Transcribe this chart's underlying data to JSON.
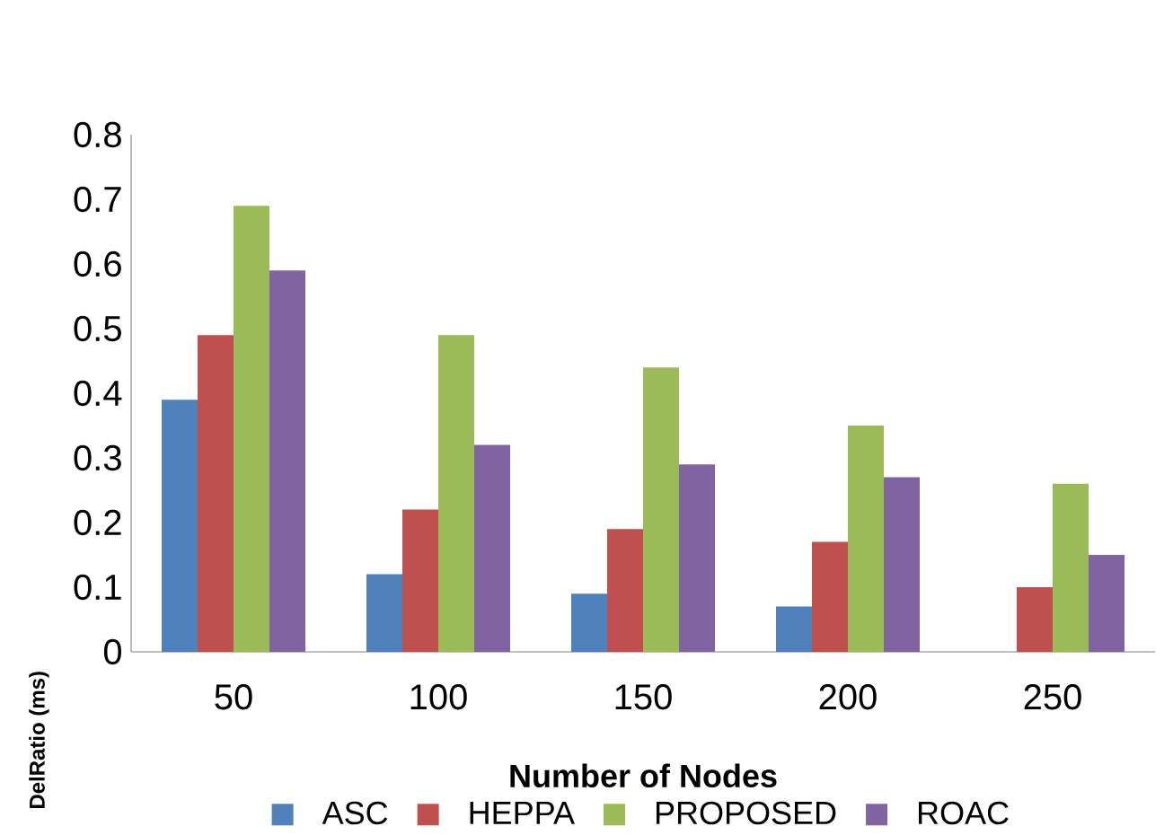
{
  "chart_data": {
    "type": "bar",
    "xlabel": "Number of Nodes",
    "ylabel": "DelRatio (ms)",
    "categories": [
      "50",
      "100",
      "150",
      "200",
      "250"
    ],
    "series": [
      {
        "name": "ASC",
        "color": "#4f81bd",
        "values": [
          0.39,
          0.12,
          0.09,
          0.07,
          null
        ]
      },
      {
        "name": "HEPPA",
        "color": "#c0504d",
        "values": [
          0.49,
          0.22,
          0.19,
          0.17,
          0.1
        ]
      },
      {
        "name": "PROPOSED",
        "color": "#9bbb59",
        "values": [
          0.69,
          0.49,
          0.44,
          0.35,
          0.26
        ]
      },
      {
        "name": "ROAC",
        "color": "#8064a2",
        "values": [
          0.59,
          0.32,
          0.29,
          0.27,
          0.15
        ]
      }
    ],
    "ylim": [
      0,
      0.8
    ],
    "yticks": [
      0,
      0.1,
      0.2,
      0.3,
      0.4,
      0.5,
      0.6,
      0.7,
      0.8
    ],
    "legend": "bottom"
  }
}
